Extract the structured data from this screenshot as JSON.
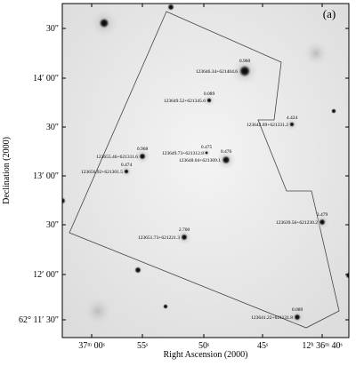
{
  "panel_label": "(a)",
  "x_axis": {
    "title": "Right Ascension (2000)",
    "ticks": [
      "37ᵐ 00ˢ",
      "55ˢ",
      "50ˢ",
      "45ˢ",
      "12ʰ 36ᵐ 40ˢ"
    ]
  },
  "y_axis": {
    "title": "Declination (2000)",
    "ticks": [
      "30″",
      "14′ 00″",
      "30″",
      "13′ 00″",
      "30″",
      "12′ 00″",
      "62° 11′ 30″"
    ]
  },
  "sources": [
    {
      "name": "123646.34+621404.6",
      "value": "0.960"
    },
    {
      "name": "123649.52+621345.6",
      "value": "0.089"
    },
    {
      "name": "123642.09+621331.2",
      "value": "4.424"
    },
    {
      "name": "123655.46+621311.6",
      "value": "0.968"
    },
    {
      "name": "123649.73+621312.8",
      "value": "0.475"
    },
    {
      "name": "123648.04+621309.1",
      "value": "0.476"
    },
    {
      "name": "123656.92+621301.5",
      "value": "0.474"
    },
    {
      "name": "123651.73+621221.3",
      "value": "2.700"
    },
    {
      "name": "123639.56+621230.2",
      "value": "3.479"
    },
    {
      "name": "123641.22+621131.8",
      "value": "0.089"
    }
  ]
}
